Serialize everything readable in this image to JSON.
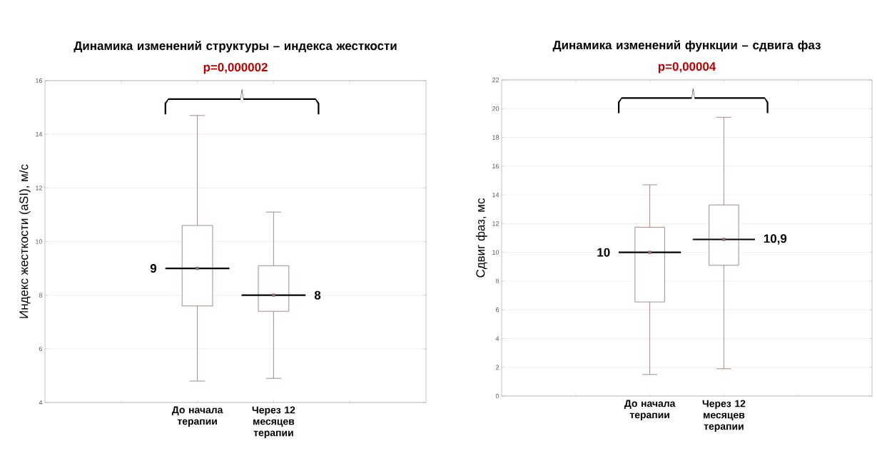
{
  "chart_data": [
    {
      "type": "box",
      "title": "Динамика изменений структуры – индекса жесткости",
      "ylabel": "Индекс жесткости (aSI), м/с",
      "categories": [
        "До начала терапии",
        "Через 12 месяцев терапии"
      ],
      "series": [
        {
          "color": "#8b7070",
          "boxes": [
            {
              "low": 4.8,
              "q1": 7.6,
              "median": 9,
              "q3": 10.6,
              "high": 14.7
            },
            {
              "low": 4.9,
              "q1": 7.4,
              "median": 8,
              "q3": 9.1,
              "high": 11.1
            }
          ]
        }
      ],
      "ylim": [
        4,
        16
      ],
      "yticks": [
        4,
        6,
        8,
        10,
        12,
        14,
        16
      ],
      "grid": "y",
      "annotations": [
        "p=0,000002",
        "9",
        "8"
      ]
    },
    {
      "type": "box",
      "title": "Динамика изменений функции – сдвига фаз",
      "ylabel": "Сдвиг фаз, мс",
      "categories": [
        "До начала терапии",
        "Через 12 месяцев терапии"
      ],
      "series": [
        {
          "color": "#8b7070",
          "boxes": [
            {
              "low": 1.5,
              "q1": 6.55,
              "median": 10,
              "q3": 11.75,
              "high": 14.7
            },
            {
              "low": 1.9,
              "q1": 9.1,
              "median": 10.9,
              "q3": 13.3,
              "high": 19.4
            }
          ]
        }
      ],
      "ylim": [
        0,
        22
      ],
      "yticks": [
        0,
        2,
        4,
        6,
        8,
        10,
        12,
        14,
        16,
        18,
        20,
        22
      ],
      "grid": "y",
      "annotations": [
        "p=0,00004",
        "10",
        "10,9"
      ]
    }
  ]
}
